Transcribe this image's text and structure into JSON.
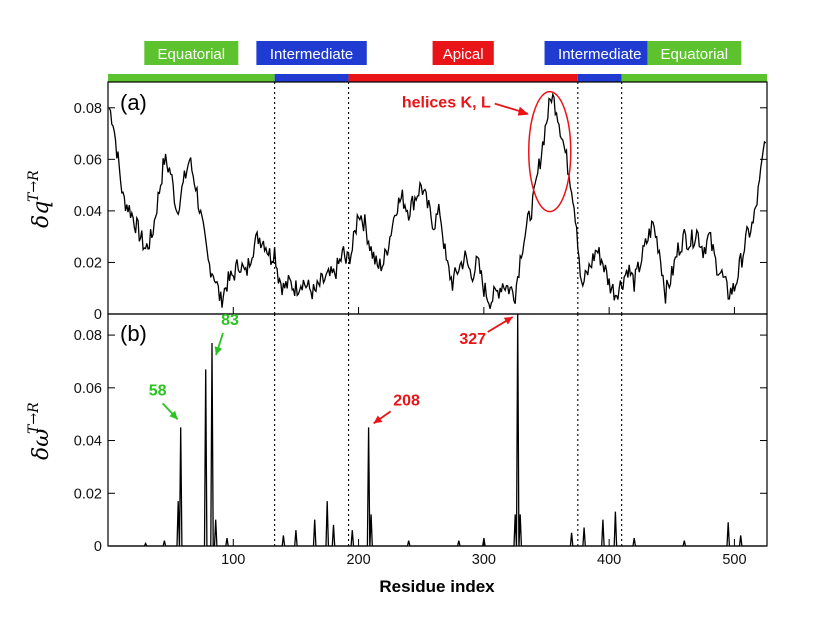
{
  "regions": [
    {
      "label": "Equatorial",
      "start": 0,
      "end": 133,
      "color": "#5cc22e"
    },
    {
      "label": "Intermediate",
      "start": 133,
      "end": 192,
      "color": "#1f3bd1"
    },
    {
      "label": "Apical",
      "start": 192,
      "end": 375,
      "color": "#e81418"
    },
    {
      "label": "Intermediate",
      "start": 375,
      "end": 410,
      "color": "#1f3bd1"
    },
    {
      "label": "Equatorial",
      "start": 410,
      "end": 526,
      "color": "#5cc22e"
    }
  ],
  "chart_data": [
    {
      "type": "line",
      "panel": "(a)",
      "ylabel": "δq",
      "ylabel_sup": "T→R",
      "xlim": [
        0,
        526
      ],
      "ylim": [
        0,
        0.09
      ],
      "yticks": [
        "0",
        "0.02",
        "0.04",
        "0.06",
        "0.08"
      ],
      "ytick_values": [
        0,
        0.02,
        0.04,
        0.06,
        0.08
      ],
      "boundaries": [
        133,
        192,
        375,
        410
      ],
      "series_anchors": {
        "x": [
          1,
          4,
          8,
          12,
          18,
          22,
          26,
          30,
          35,
          40,
          45,
          50,
          55,
          60,
          65,
          70,
          75,
          80,
          85,
          90,
          95,
          100,
          105,
          110,
          115,
          120,
          125,
          130,
          133,
          136,
          140,
          145,
          150,
          155,
          160,
          165,
          170,
          175,
          180,
          185,
          188,
          190,
          195,
          200,
          205,
          210,
          215,
          220,
          225,
          230,
          235,
          240,
          245,
          250,
          255,
          260,
          265,
          270,
          275,
          280,
          285,
          290,
          295,
          300,
          305,
          310,
          315,
          320,
          325,
          330,
          335,
          340,
          345,
          350,
          354,
          358,
          362,
          366,
          370,
          374,
          378,
          382,
          386,
          390,
          395,
          400,
          405,
          410,
          415,
          420,
          425,
          430,
          435,
          440,
          445,
          450,
          455,
          460,
          465,
          470,
          475,
          480,
          485,
          490,
          495,
          500,
          505,
          510,
          515,
          520,
          525
        ],
        "y": [
          0.08,
          0.075,
          0.06,
          0.045,
          0.04,
          0.035,
          0.03,
          0.025,
          0.03,
          0.045,
          0.06,
          0.055,
          0.04,
          0.05,
          0.06,
          0.05,
          0.035,
          0.02,
          0.015,
          0.005,
          0.012,
          0.015,
          0.02,
          0.015,
          0.025,
          0.03,
          0.028,
          0.022,
          0.025,
          0.015,
          0.01,
          0.012,
          0.01,
          0.013,
          0.01,
          0.008,
          0.012,
          0.014,
          0.015,
          0.02,
          0.024,
          0.02,
          0.025,
          0.04,
          0.035,
          0.025,
          0.018,
          0.02,
          0.03,
          0.042,
          0.045,
          0.04,
          0.045,
          0.05,
          0.042,
          0.035,
          0.04,
          0.02,
          0.012,
          0.018,
          0.022,
          0.015,
          0.02,
          0.01,
          0.005,
          0.008,
          0.012,
          0.01,
          0.008,
          0.025,
          0.035,
          0.045,
          0.06,
          0.075,
          0.085,
          0.08,
          0.07,
          0.06,
          0.05,
          0.035,
          0.01,
          0.015,
          0.02,
          0.025,
          0.02,
          0.012,
          0.008,
          0.012,
          0.018,
          0.012,
          0.02,
          0.028,
          0.035,
          0.025,
          0.008,
          0.015,
          0.025,
          0.03,
          0.028,
          0.032,
          0.025,
          0.03,
          0.02,
          0.015,
          0.008,
          0.01,
          0.02,
          0.03,
          0.035,
          0.05,
          0.07
        ]
      },
      "annotations": [
        {
          "text": "helices K, L",
          "x": 355,
          "y": 0.063,
          "color": "#e81418"
        }
      ]
    },
    {
      "type": "line",
      "panel": "(b)",
      "xlabel": "Residue index",
      "ylabel": "δω",
      "ylabel_sup": "T→R",
      "xlim": [
        0,
        526
      ],
      "ylim": [
        0,
        0.088
      ],
      "xticks": [
        "100",
        "200",
        "300",
        "400",
        "500"
      ],
      "xtick_values": [
        100,
        200,
        300,
        400,
        500
      ],
      "yticks": [
        "0",
        "0.02",
        "0.04",
        "0.06",
        "0.08"
      ],
      "ytick_values": [
        0,
        0.02,
        0.04,
        0.06,
        0.08
      ],
      "boundaries": [
        133,
        192,
        375,
        410
      ],
      "peaks": [
        {
          "x": 56,
          "y": 0.017
        },
        {
          "x": 58,
          "y": 0.045
        },
        {
          "x": 78,
          "y": 0.067
        },
        {
          "x": 83,
          "y": 0.077
        },
        {
          "x": 86,
          "y": 0.01
        },
        {
          "x": 208,
          "y": 0.045
        },
        {
          "x": 210,
          "y": 0.012
        },
        {
          "x": 325,
          "y": 0.012
        },
        {
          "x": 327,
          "y": 0.088
        },
        {
          "x": 329,
          "y": 0.012
        }
      ],
      "noise": [
        {
          "x": 30,
          "y": 0.001
        },
        {
          "x": 45,
          "y": 0.002
        },
        {
          "x": 95,
          "y": 0.003
        },
        {
          "x": 140,
          "y": 0.004
        },
        {
          "x": 150,
          "y": 0.006
        },
        {
          "x": 165,
          "y": 0.01
        },
        {
          "x": 175,
          "y": 0.017
        },
        {
          "x": 180,
          "y": 0.008
        },
        {
          "x": 195,
          "y": 0.006
        },
        {
          "x": 240,
          "y": 0.002
        },
        {
          "x": 280,
          "y": 0.002
        },
        {
          "x": 300,
          "y": 0.003
        },
        {
          "x": 370,
          "y": 0.005
        },
        {
          "x": 380,
          "y": 0.007
        },
        {
          "x": 395,
          "y": 0.01
        },
        {
          "x": 405,
          "y": 0.013
        },
        {
          "x": 420,
          "y": 0.003
        },
        {
          "x": 460,
          "y": 0.002
        },
        {
          "x": 495,
          "y": 0.009
        },
        {
          "x": 505,
          "y": 0.004
        }
      ],
      "annotations": [
        {
          "text": "58",
          "x": 58,
          "y": 0.045,
          "color": "#29c41f"
        },
        {
          "text": "83",
          "x": 83,
          "y": 0.077,
          "color": "#29c41f"
        },
        {
          "text": "208",
          "x": 208,
          "y": 0.045,
          "color": "#e81418"
        },
        {
          "text": "327",
          "x": 327,
          "y": 0.088,
          "color": "#e81418"
        }
      ]
    }
  ]
}
